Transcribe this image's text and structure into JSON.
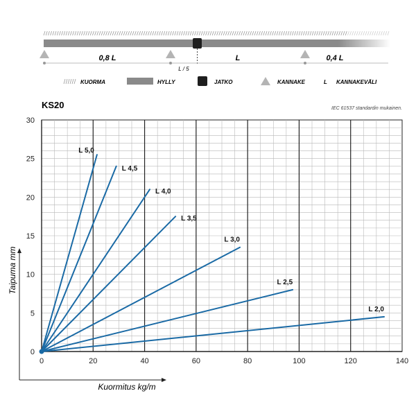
{
  "diagram": {
    "segments": [
      "0,8 L",
      "L",
      "0,4 L"
    ],
    "offset_label": "L / 5"
  },
  "legend": [
    {
      "icon": "hatch-icon",
      "label": "KUORMA"
    },
    {
      "icon": "shelf-bar-icon",
      "label": "HYLLY"
    },
    {
      "icon": "joint-square-icon",
      "label": "JATKO"
    },
    {
      "icon": "bracket-triangle-icon",
      "label": "KANNAKE"
    },
    {
      "icon": "L",
      "label": "KANNAKEVÄLI"
    }
  ],
  "colors": {
    "line": "#1a6aa5",
    "bar": "#8a8a8a",
    "joint": "#1e1e1e",
    "triangle": "#b4b4b4"
  },
  "chart_data": {
    "type": "line",
    "title": "KS20",
    "subtitle": "IEC 61537 standardin mukainen.",
    "xlabel": "Kuormitus kg/m",
    "ylabel": "Taipuma mm",
    "xlim": [
      0,
      140
    ],
    "ylim": [
      0,
      30
    ],
    "xticks": [
      0,
      20,
      40,
      60,
      80,
      100,
      120,
      140
    ],
    "yticks": [
      0,
      5,
      10,
      15,
      20,
      25,
      30
    ],
    "grid": true,
    "series": [
      {
        "name": "L 5,0",
        "x": [
          0,
          21.5
        ],
        "y": [
          0,
          25.5
        ]
      },
      {
        "name": "L 4,5",
        "x": [
          0,
          29
        ],
        "y": [
          0,
          24
        ]
      },
      {
        "name": "L 4,0",
        "x": [
          0,
          42
        ],
        "y": [
          0,
          21
        ]
      },
      {
        "name": "L 3,5",
        "x": [
          0,
          52
        ],
        "y": [
          0,
          17.5
        ]
      },
      {
        "name": "L 3,0",
        "x": [
          0,
          77
        ],
        "y": [
          0,
          13.5
        ]
      },
      {
        "name": "L 2,5",
        "x": [
          0,
          97.5
        ],
        "y": [
          0,
          8
        ]
      },
      {
        "name": "L 2,0",
        "x": [
          0,
          133
        ],
        "y": [
          0,
          4.5
        ]
      }
    ]
  }
}
